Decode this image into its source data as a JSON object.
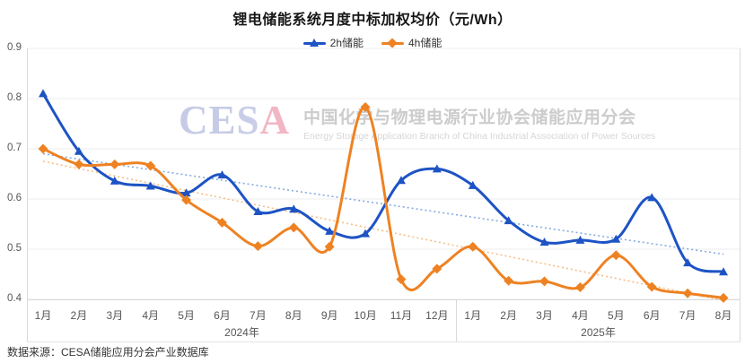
{
  "page": {
    "title": "锂电储能系统月度中标加权均价（元/Wh）",
    "footer": "数据来源：CESA储能应用分会产业数据库"
  },
  "legend": [
    {
      "label": "2h储能",
      "color": "#1d53c4",
      "marker": "triangle"
    },
    {
      "label": "4h储能",
      "color": "#ee8223",
      "marker": "diamond"
    }
  ],
  "watermark": {
    "logo_letters": [
      {
        "ch": "C",
        "color": "#c6cbe6"
      },
      {
        "ch": "E",
        "color": "#c6cbe6"
      },
      {
        "ch": "S",
        "color": "#c9cde8"
      },
      {
        "ch": "A",
        "color": "#f2b5c4"
      }
    ],
    "cn": "中国化学与物理电源行业协会储能应用分会",
    "en": "Energy Storage Application Branch of China Industrial Association of Power Sources"
  },
  "chart_data": {
    "type": "line",
    "title": "锂电储能系统月度中标加权均价（元/Wh）",
    "ylabel": "元/Wh",
    "ylim": [
      0.4,
      0.9
    ],
    "y_ticks": [
      "0.9",
      "0.8",
      "0.7",
      "0.6",
      "0.5",
      "0.4"
    ],
    "grid": "horizontal",
    "legend_position": "top",
    "smooth": true,
    "x_months": [
      "1月",
      "2月",
      "3月",
      "4月",
      "5月",
      "6月",
      "7月",
      "8月",
      "9月",
      "10月",
      "11月",
      "12月",
      "1月",
      "2月",
      "3月",
      "4月",
      "5月",
      "6月",
      "7月",
      "8月"
    ],
    "year_groups": [
      {
        "label": "2024年",
        "months": 12
      },
      {
        "label": "2025年",
        "months": 8
      }
    ],
    "series": [
      {
        "name": "2h储能",
        "color": "#1d53c4",
        "marker": "triangle",
        "values": [
          0.81,
          0.695,
          0.636,
          0.626,
          0.612,
          0.648,
          0.575,
          0.58,
          0.536,
          0.531,
          0.637,
          0.66,
          0.627,
          0.557,
          0.514,
          0.518,
          0.52,
          0.603,
          0.473,
          0.455
        ],
        "trendline": {
          "start": 0.69,
          "end": 0.49,
          "color": "#86abdf"
        }
      },
      {
        "name": "4h储能",
        "color": "#ee8223",
        "marker": "diamond",
        "values": [
          0.7,
          0.669,
          0.669,
          0.666,
          0.598,
          0.553,
          0.506,
          0.543,
          0.505,
          0.783,
          0.44,
          0.461,
          0.505,
          0.437,
          0.436,
          0.424,
          0.488,
          0.425,
          0.412,
          0.403
        ],
        "trendline": {
          "start": 0.675,
          "end": 0.398,
          "color": "#f5bd85"
        }
      }
    ]
  }
}
